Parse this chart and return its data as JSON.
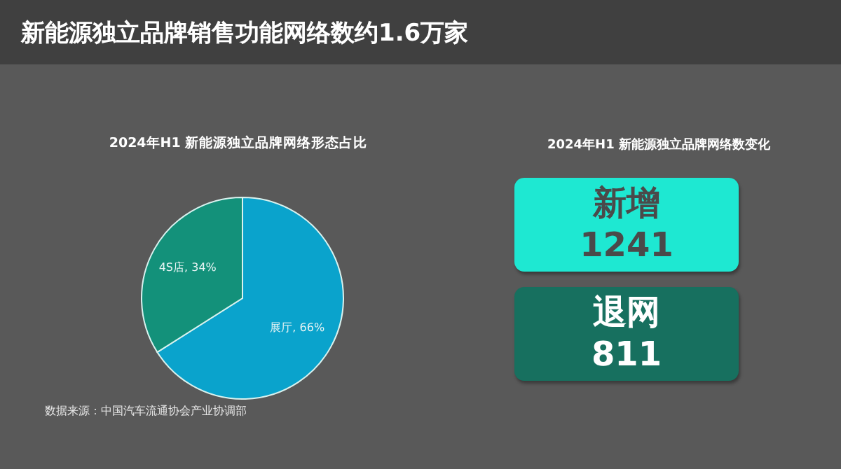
{
  "chart_data": [
    {
      "type": "pie",
      "title": "2024年H1 新能源独立品牌网络形态占比",
      "categories": [
        "展厅",
        "4S店"
      ],
      "values": [
        66,
        34
      ],
      "colors": [
        "#0aa3cc",
        "#13917a"
      ],
      "value_labels": [
        "66%",
        "34%"
      ],
      "annotations": [
        "新能源独立品牌销售功能网络数约1.6万家",
        "数据来源：中国汽车流通协会产业协调部"
      ]
    },
    {
      "type": "other",
      "title": "2024年H1 新能源独立品牌网络数变化",
      "categories": [
        "新增",
        "退网"
      ],
      "values": [
        1241,
        811
      ],
      "colors": [
        "#1ee8d2",
        "#17705f"
      ],
      "data_labels": true
    }
  ]
}
